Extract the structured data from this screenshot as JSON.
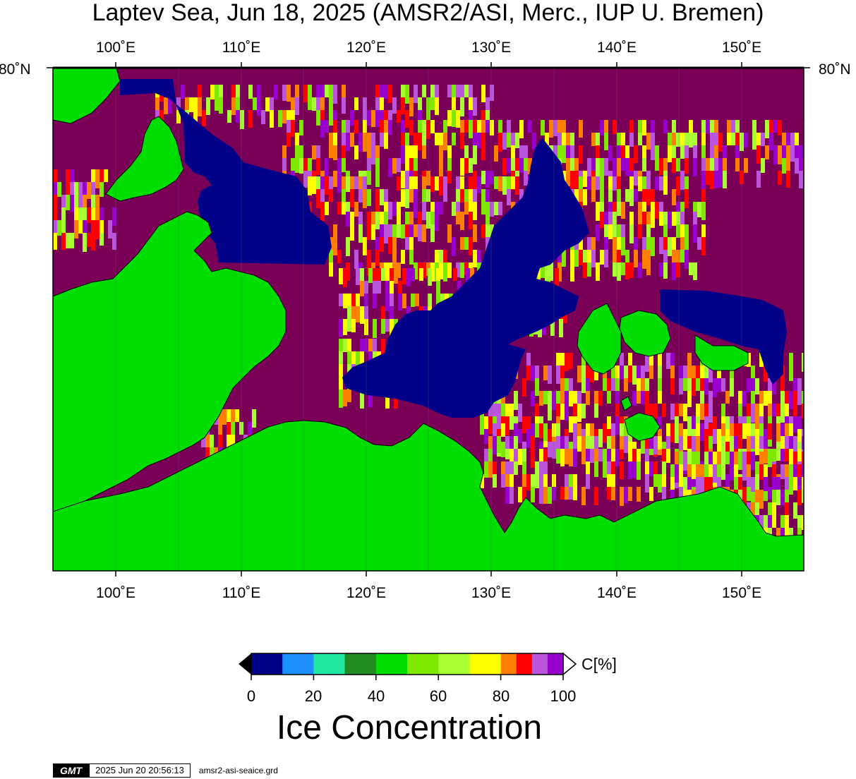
{
  "title": "Laptev Sea, Jun 18, 2025 (AMSR2/ASI, Merc., IUP U. Bremen)",
  "map": {
    "lon_labels": [
      "100˚E",
      "110˚E",
      "120˚E",
      "130˚E",
      "140˚E",
      "150˚E"
    ],
    "lat_labels": [
      "80˚N",
      "80˚N"
    ],
    "extent_lon": [
      95,
      155
    ],
    "colors": {
      "land": "#00dd00",
      "ice_high": "#7a0057",
      "open_water": "#000088"
    }
  },
  "colorbar": {
    "colors": [
      "#000088",
      "#1e8fff",
      "#20e8a0",
      "#228b22",
      "#00dd00",
      "#7fe800",
      "#aaff33",
      "#ffff00",
      "#ff7f00",
      "#ff0000",
      "#bb55dd",
      "#9900cc"
    ],
    "tick_labels": [
      "0",
      "20",
      "40",
      "60",
      "80",
      "100"
    ],
    "unit": "C[%]",
    "label": "Ice Concentration"
  },
  "footer": {
    "logo": "GMT",
    "timestamp": "2025 Jun 20 20:56:13",
    "filename": "amsr2-asi-seaice.grd"
  }
}
